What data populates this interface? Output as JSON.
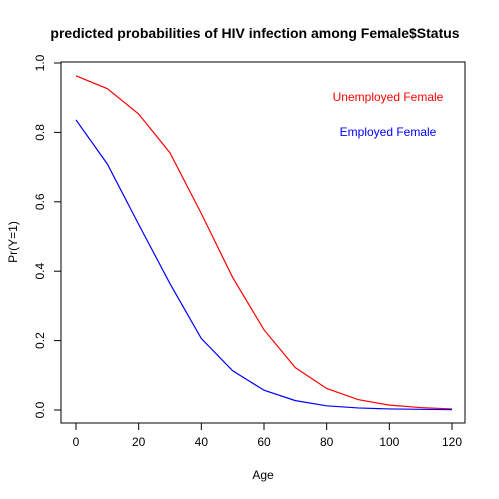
{
  "chart_data": {
    "type": "line",
    "title": "predicted probabilities of HIV infection among Female$Status",
    "xlabel": "Age",
    "ylabel": "Pr(Y=1)",
    "xlim": [
      0,
      120
    ],
    "ylim": [
      0,
      1
    ],
    "x_ticks": [
      "0",
      "20",
      "40",
      "60",
      "80",
      "100",
      "120"
    ],
    "y_ticks": [
      "0.0",
      "0.2",
      "0.4",
      "0.6",
      "0.8",
      "1.0"
    ],
    "grid": false,
    "legend_position": "top-right",
    "x": [
      0,
      10,
      20,
      30,
      40,
      50,
      60,
      70,
      80,
      90,
      100,
      110,
      120
    ],
    "series": [
      {
        "name": "Unemployed Female",
        "color": "#ff0000",
        "values": [
          0.963,
          0.926,
          0.853,
          0.741,
          0.566,
          0.382,
          0.231,
          0.122,
          0.062,
          0.03,
          0.014,
          0.007,
          0.003
        ]
      },
      {
        "name": "Employed Female",
        "color": "#0000ff",
        "values": [
          0.836,
          0.709,
          0.535,
          0.364,
          0.206,
          0.113,
          0.057,
          0.027,
          0.012,
          0.006,
          0.003,
          0.002,
          0.001
        ]
      }
    ]
  }
}
